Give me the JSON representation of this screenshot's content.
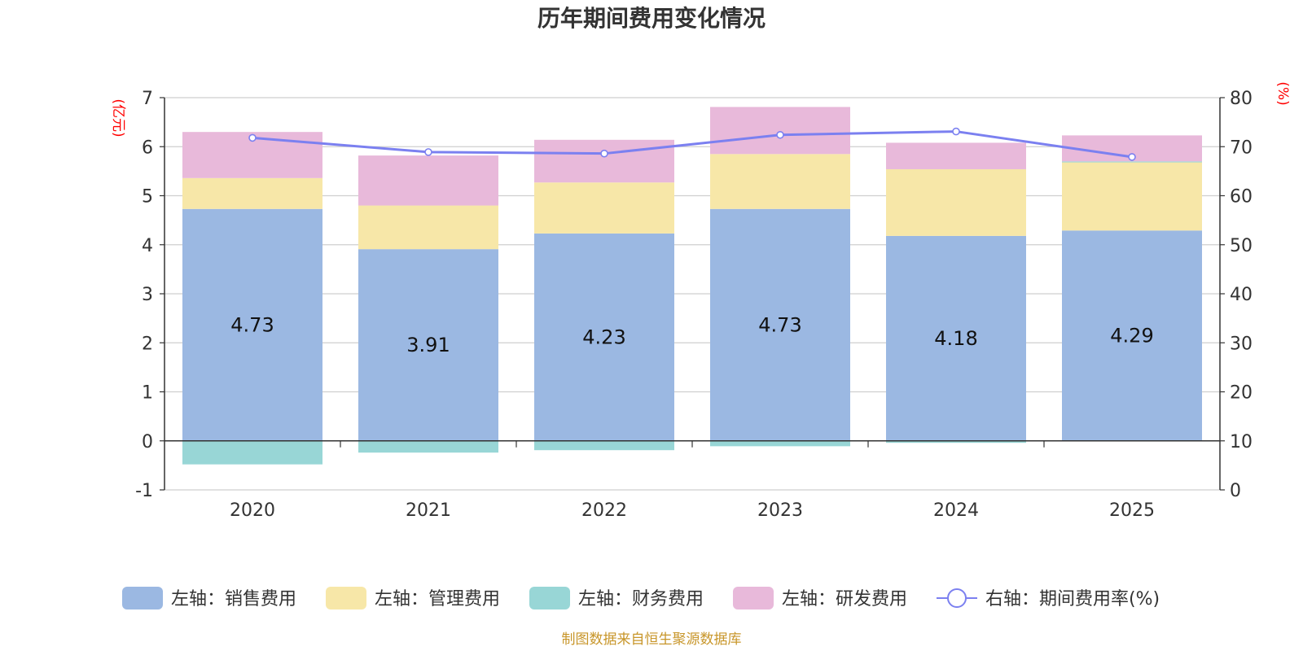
{
  "chart_data": {
    "type": "bar",
    "title": "历年期间费用变化情况",
    "categories": [
      "2020",
      "2021",
      "2022",
      "2023",
      "2024",
      "2025"
    ],
    "left_axis": {
      "unit": "(亿元)",
      "ylim": [
        -1,
        7
      ],
      "ticks": [
        -1,
        0,
        1,
        2,
        3,
        4,
        5,
        6,
        7
      ]
    },
    "right_axis": {
      "unit": "(%)",
      "ylim": [
        0,
        80
      ],
      "ticks": [
        0,
        10,
        20,
        30,
        40,
        50,
        60,
        70,
        80
      ]
    },
    "series": [
      {
        "name": "左轴：销售费用",
        "color": "#9bb8e2",
        "axis": "left",
        "values": [
          4.73,
          3.91,
          4.23,
          4.73,
          4.18,
          4.29
        ],
        "labels": [
          "4.73",
          "3.91",
          "4.23",
          "4.73",
          "4.18",
          "4.29"
        ]
      },
      {
        "name": "左轴：管理费用",
        "color": "#f7e7a8",
        "axis": "left",
        "values": [
          0.63,
          0.89,
          1.04,
          1.12,
          1.36,
          1.39
        ]
      },
      {
        "name": "左轴：财务费用",
        "color": "#98d6d6",
        "axis": "left",
        "values": [
          -0.48,
          -0.24,
          -0.19,
          -0.11,
          -0.04,
          0.02
        ]
      },
      {
        "name": "左轴：研发费用",
        "color": "#e8b9da",
        "axis": "left",
        "values": [
          0.94,
          1.02,
          0.87,
          0.96,
          0.54,
          0.53
        ]
      }
    ],
    "line": {
      "name": "右轴：期间费用率(%)",
      "color": "#7b80f0",
      "axis": "right",
      "values": [
        71.8,
        68.9,
        68.6,
        72.4,
        73.1,
        67.9
      ]
    },
    "source": "制图数据来自恒生聚源数据库"
  }
}
